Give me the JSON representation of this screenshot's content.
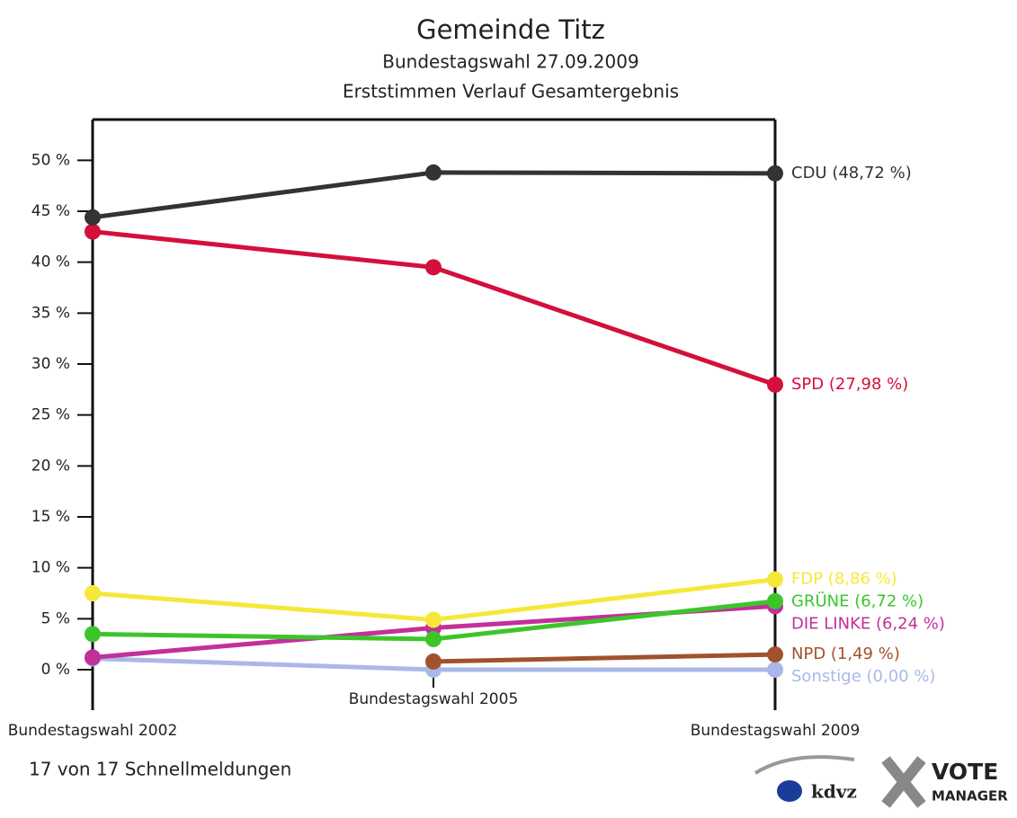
{
  "chart_data": {
    "type": "line",
    "title": "Gemeinde Titz",
    "subtitle": "Bundestagswahl 27.09.2009",
    "subtitle2": "Erststimmen Verlauf Gesamtergebnis",
    "footer": "17 von 17 Schnellmeldungen",
    "logo_texts": [
      "kdvz",
      "VOTE",
      "MANAGER"
    ],
    "categories": [
      "Bundestagswahl 2002",
      "Bundestagswahl 2005",
      "Bundestagswahl 2009"
    ],
    "ylim": [
      0,
      54
    ],
    "yticks": [
      {
        "value": 0,
        "label": "0 %"
      },
      {
        "value": 5,
        "label": "5 %"
      },
      {
        "value": 10,
        "label": "10 %"
      },
      {
        "value": 15,
        "label": "15 %"
      },
      {
        "value": 20,
        "label": "20 %"
      },
      {
        "value": 25,
        "label": "25 %"
      },
      {
        "value": 30,
        "label": "30 %"
      },
      {
        "value": 35,
        "label": "35 %"
      },
      {
        "value": 40,
        "label": "40 %"
      },
      {
        "value": 45,
        "label": "45 %"
      },
      {
        "value": 50,
        "label": "50 %"
      }
    ],
    "series": [
      {
        "name": "CDU",
        "label": "CDU (48,72 %)",
        "color": "#333333",
        "values": [
          44.4,
          48.8,
          48.72
        ]
      },
      {
        "name": "SPD",
        "label": "SPD (27,98 %)",
        "color": "#d3103c",
        "values": [
          43.0,
          39.5,
          27.98
        ]
      },
      {
        "name": "FDP",
        "label": "FDP (8,86 %)",
        "color": "#f5e83a",
        "values": [
          7.5,
          4.9,
          8.86
        ]
      },
      {
        "name": "GRÜNE",
        "label": "GRÜNE (6,72 %)",
        "color": "#3cc52a",
        "values": [
          3.5,
          3.0,
          6.72
        ]
      },
      {
        "name": "DIE LINKE",
        "label": "DIE LINKE (6,24 %)",
        "color": "#c2309a",
        "values": [
          1.2,
          4.1,
          6.24
        ]
      },
      {
        "name": "NPD",
        "label": "NPD (1,49 %)",
        "color": "#a0522d",
        "values": [
          null,
          0.8,
          1.49
        ]
      },
      {
        "name": "Sonstige",
        "label": "Sonstige (0,00 %)",
        "color": "#aab8e8",
        "values": [
          1.1,
          0.0,
          0.0
        ]
      }
    ]
  }
}
